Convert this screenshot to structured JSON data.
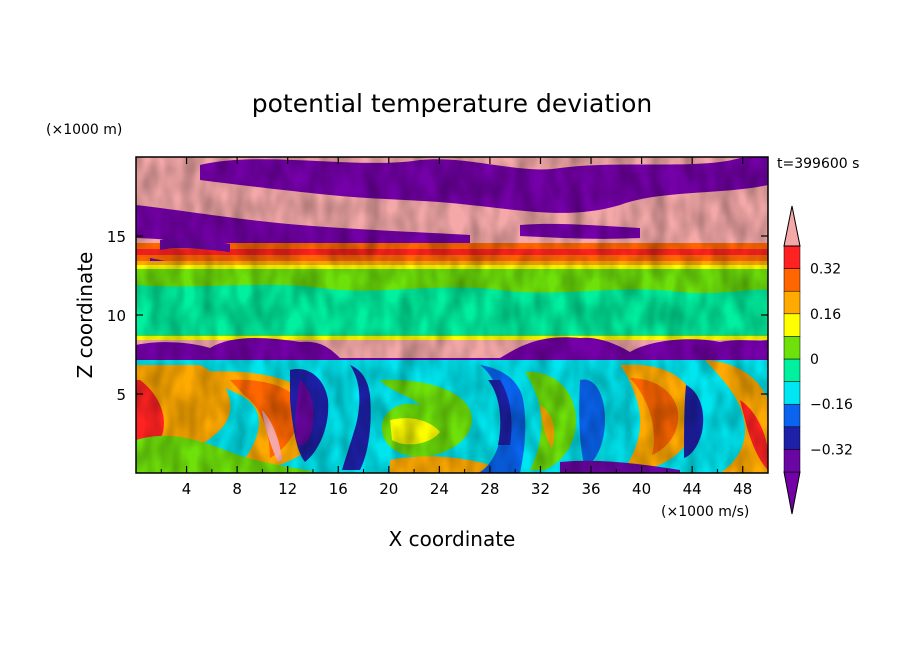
{
  "chart_data": {
    "type": "heatmap",
    "title": "potential temperature deviation",
    "xlabel": "X coordinate",
    "ylabel": "Z coordinate",
    "x_unit": "(×1000 m/s)",
    "y_unit": "(×1000 m)",
    "time_label": "t=399600 s",
    "xlim": [
      0,
      50
    ],
    "ylim": [
      0,
      20
    ],
    "x_ticks": [
      "4",
      "8",
      "12",
      "16",
      "20",
      "24",
      "28",
      "32",
      "36",
      "40",
      "44",
      "48"
    ],
    "y_ticks": [
      "5",
      "10",
      "15"
    ],
    "colorbar": {
      "levels": [
        -0.4,
        -0.32,
        -0.24,
        -0.16,
        -0.08,
        0,
        0.08,
        0.16,
        0.24,
        0.32,
        0.4
      ],
      "tick_labels": [
        "0.32",
        "0.16",
        "0",
        "−0.16",
        "−0.32"
      ],
      "tick_values": [
        0.32,
        0.16,
        0,
        -0.16,
        -0.32
      ],
      "colors": [
        "#7400a8",
        "#6a06a2",
        "#1e20a8",
        "#0a64f0",
        "#00e6f0",
        "#00f0a0",
        "#6ee00a",
        "#ffff00",
        "#ffaa00",
        "#ff6600",
        "#ff2222",
        "#f4a8a8"
      ]
    },
    "bands": [
      {
        "z": [
          17.0,
          20.0
        ],
        "description": "alternating +0.4 / −0.4 (pink and purple) layers"
      },
      {
        "z": [
          13.0,
          17.0
        ],
        "description": "mixed small-scale +/− patches, orange-red near 14"
      },
      {
        "z": [
          8.5,
          13.0
        ],
        "description": "near zero (green)"
      },
      {
        "z": [
          7.0,
          8.5
        ],
        "description": "−0.4 / +0.4 undulating interface"
      },
      {
        "z": [
          0.0,
          7.0
        ],
        "description": "convective eddies ranging −0.4 to +0.4"
      }
    ]
  }
}
